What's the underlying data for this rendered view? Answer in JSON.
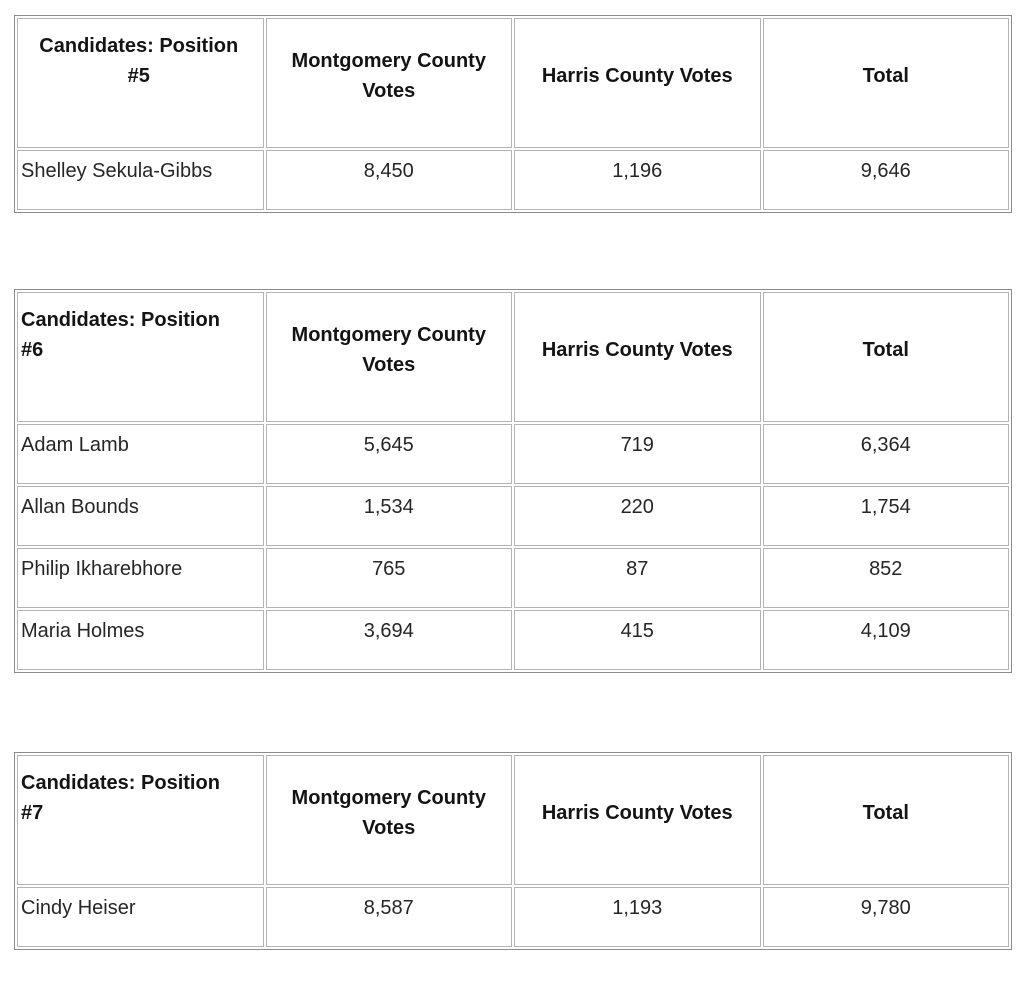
{
  "document": {
    "background": "#ffffff",
    "header_text_color": "#141414",
    "body_text_color": "#262626",
    "outer_border_color": "#8c8c8c",
    "cell_border_color": "#b4b4b4"
  },
  "tables": [
    {
      "title": "Candidates: Position #5",
      "columns": {
        "montgomery": "Montgomery County Votes",
        "harris": "Harris County Votes",
        "total": "Total"
      },
      "rows": [
        {
          "candidate": "Shelley Sekula-Gibbs",
          "montgomery": "8,450",
          "harris": "1,196",
          "total": "9,646"
        }
      ]
    },
    {
      "title": "Candidates: Position #6",
      "columns": {
        "montgomery": "Montgomery County Votes",
        "harris": "Harris County Votes",
        "total": "Total"
      },
      "rows": [
        {
          "candidate": "Adam Lamb",
          "montgomery": "5,645",
          "harris": "719",
          "total": "6,364"
        },
        {
          "candidate": "Allan Bounds",
          "montgomery": "1,534",
          "harris": "220",
          "total": "1,754"
        },
        {
          "candidate": "Philip Ikharebhore",
          "montgomery": "765",
          "harris": "87",
          "total": "852"
        },
        {
          "candidate": "Maria Holmes",
          "montgomery": "3,694",
          "harris": "415",
          "total": "4,109"
        }
      ]
    },
    {
      "title": "Candidates: Position #7",
      "columns": {
        "montgomery": "Montgomery County Votes",
        "harris": "Harris County Votes",
        "total": "Total"
      },
      "rows": [
        {
          "candidate": "Cindy Heiser",
          "montgomery": "8,587",
          "harris": "1,193",
          "total": "9,780"
        }
      ]
    }
  ]
}
